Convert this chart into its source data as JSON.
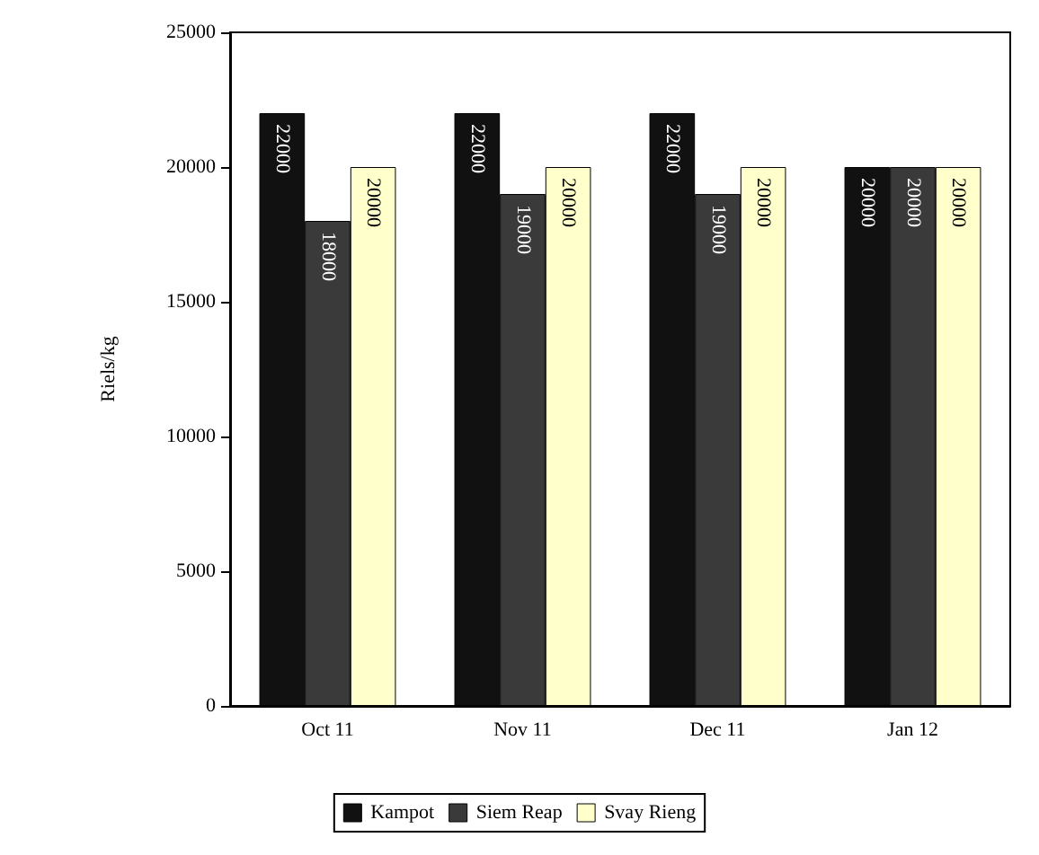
{
  "chart_data": {
    "type": "bar",
    "ylabel": "Riels/kg",
    "categories": [
      "Oct 11",
      "Nov 11",
      "Dec 11",
      "Jan 12"
    ],
    "series": [
      {
        "name": "Kampot",
        "color": "#111111",
        "values": [
          22000,
          22000,
          22000,
          20000
        ]
      },
      {
        "name": "Siem Reap",
        "color": "#3a3a3a",
        "values": [
          18000,
          19000,
          19000,
          20000
        ]
      },
      {
        "name": "Svay Rieng",
        "color": "#ffffcc",
        "values": [
          20000,
          20000,
          20000,
          20000
        ]
      }
    ],
    "ylim": [
      0,
      25000
    ],
    "yticks": [
      0,
      5000,
      10000,
      15000,
      20000,
      25000
    ],
    "grid": false,
    "legend": "bottom",
    "data_labels": true
  }
}
